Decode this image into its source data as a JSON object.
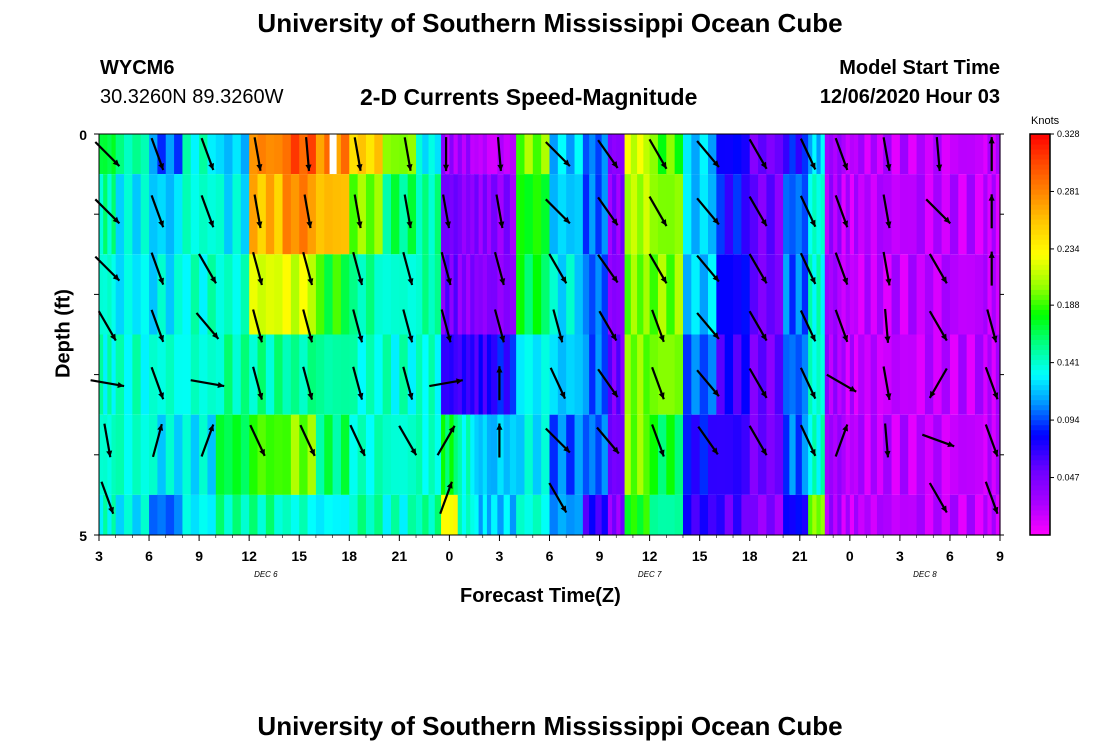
{
  "header": {
    "title": "University of Southern Mississippi Ocean Cube",
    "station_id": "WYCM6",
    "station_coords": "30.3260N 89.3260W",
    "subtitle": "2-D Currents Speed-Magnitude",
    "model_start_label": "Model Start Time",
    "model_start_value": "12/06/2020 Hour 03"
  },
  "footer": {
    "title": "University of Southern Mississippi Ocean Cube"
  },
  "chart_data": {
    "type": "heatmap",
    "title": "2-D Currents Speed-Magnitude",
    "xlabel": "Forecast Time(Z)",
    "ylabel": "Depth (ft)",
    "x_hours": [
      0,
      54
    ],
    "x_tick_labels": [
      "3",
      "6",
      "9",
      "12",
      "15",
      "18",
      "21",
      "0",
      "3",
      "6",
      "9",
      "12",
      "15",
      "18",
      "21",
      "0",
      "3",
      "6",
      "9"
    ],
    "date_labels": [
      {
        "label": "DEC 6",
        "hour": 10
      },
      {
        "label": "DEC 7",
        "hour": 33
      },
      {
        "label": "DEC 8",
        "hour": 49.5
      }
    ],
    "ylim": [
      0,
      5
    ],
    "y_tick_labels": [
      "0",
      "5"
    ],
    "depth_layers": 5,
    "colorbar": {
      "units": "Knots",
      "min": 0.0,
      "max": 0.328,
      "tick_labels": [
        "0.328",
        "0.281",
        "0.234",
        "0.188",
        "0.141",
        "0.094",
        "0.047"
      ],
      "tick_values": [
        0.328,
        0.281,
        0.234,
        0.188,
        0.141,
        0.094,
        0.047
      ]
    },
    "speed_profile_hours": [
      0,
      2,
      4,
      6,
      8,
      10,
      12,
      14,
      16,
      18,
      20,
      21,
      22,
      23,
      24,
      26,
      28,
      30,
      31,
      32,
      34,
      36,
      38,
      40,
      42,
      43,
      44,
      45,
      46,
      48,
      50,
      52,
      54
    ],
    "speed_profile_knots": [
      [
        0.17,
        0.15,
        0.1,
        0.14,
        0.12,
        0.28,
        0.3,
        0.28,
        0.25,
        0.2,
        0.13,
        0.03,
        0.03,
        0.02,
        0.02,
        0.2,
        0.12,
        0.1,
        0.04,
        0.22,
        0.19,
        0.12,
        0.08,
        0.05,
        0.08,
        0.12,
        0.03,
        0.02,
        0.02,
        0.02,
        0.02,
        0.02,
        0.02
      ],
      [
        0.15,
        0.13,
        0.12,
        0.14,
        0.13,
        0.26,
        0.28,
        0.26,
        0.2,
        0.16,
        0.15,
        0.05,
        0.04,
        0.04,
        0.04,
        0.18,
        0.12,
        0.1,
        0.04,
        0.21,
        0.2,
        0.12,
        0.08,
        0.05,
        0.1,
        0.14,
        0.03,
        0.02,
        0.02,
        0.02,
        0.02,
        0.02,
        0.02
      ],
      [
        0.14,
        0.13,
        0.13,
        0.14,
        0.14,
        0.22,
        0.22,
        0.18,
        0.15,
        0.14,
        0.15,
        0.05,
        0.04,
        0.04,
        0.04,
        0.17,
        0.13,
        0.1,
        0.04,
        0.2,
        0.2,
        0.12,
        0.08,
        0.05,
        0.1,
        0.14,
        0.03,
        0.02,
        0.02,
        0.02,
        0.02,
        0.02,
        0.02
      ],
      [
        0.14,
        0.14,
        0.14,
        0.14,
        0.15,
        0.15,
        0.15,
        0.15,
        0.14,
        0.14,
        0.14,
        0.07,
        0.07,
        0.07,
        0.08,
        0.13,
        0.12,
        0.1,
        0.05,
        0.2,
        0.2,
        0.1,
        0.07,
        0.05,
        0.1,
        0.14,
        0.03,
        0.02,
        0.02,
        0.02,
        0.02,
        0.02,
        0.02
      ],
      [
        0.14,
        0.14,
        0.13,
        0.13,
        0.17,
        0.19,
        0.2,
        0.16,
        0.14,
        0.14,
        0.14,
        0.17,
        0.14,
        0.12,
        0.12,
        0.13,
        0.1,
        0.1,
        0.05,
        0.2,
        0.17,
        0.08,
        0.07,
        0.05,
        0.1,
        0.14,
        0.03,
        0.02,
        0.02,
        0.02,
        0.02,
        0.02,
        0.02
      ],
      [
        0.14,
        0.13,
        0.1,
        0.13,
        0.15,
        0.15,
        0.14,
        0.13,
        0.15,
        0.14,
        0.15,
        0.23,
        0.14,
        0.12,
        0.12,
        0.14,
        0.11,
        0.07,
        0.04,
        0.18,
        0.15,
        0.07,
        0.06,
        0.04,
        0.08,
        0.2,
        0.03,
        0.02,
        0.02,
        0.02,
        0.02,
        0.02,
        0.02
      ]
    ],
    "arrow_hours": [
      0.5,
      3.5,
      6.5,
      9.5,
      12.5,
      15.5,
      18.5,
      20.8,
      24,
      27.5,
      30.5,
      33.5,
      36.5,
      39.5,
      42.5,
      44.5,
      47.2,
      50.3,
      53.5
    ],
    "arrow_angle_deg": [
      [
        135,
        160,
        160,
        170,
        175,
        170,
        170,
        180,
        175,
        135,
        145,
        150,
        140,
        150,
        155,
        160,
        170,
        175,
        0
      ],
      [
        135,
        160,
        160,
        170,
        170,
        170,
        170,
        170,
        170,
        135,
        145,
        150,
        140,
        150,
        155,
        160,
        170,
        135,
        0
      ],
      [
        135,
        160,
        150,
        165,
        165,
        165,
        165,
        165,
        165,
        150,
        145,
        150,
        140,
        150,
        155,
        160,
        170,
        150,
        0
      ],
      [
        150,
        160,
        140,
        165,
        165,
        165,
        165,
        165,
        165,
        165,
        150,
        160,
        140,
        150,
        155,
        160,
        175,
        150,
        165
      ],
      [
        100,
        160,
        100,
        165,
        165,
        165,
        165,
        80,
        0,
        155,
        145,
        160,
        140,
        150,
        155,
        120,
        170,
        210,
        160
      ],
      [
        170,
        15,
        20,
        155,
        155,
        155,
        150,
        30,
        0,
        135,
        140,
        160,
        145,
        150,
        155,
        20,
        175,
        110,
        160
      ],
      [
        160,
        0,
        0,
        0,
        0,
        0,
        0,
        20,
        0,
        150,
        0,
        0,
        0,
        0,
        0,
        0,
        0,
        150,
        160
      ]
    ]
  }
}
